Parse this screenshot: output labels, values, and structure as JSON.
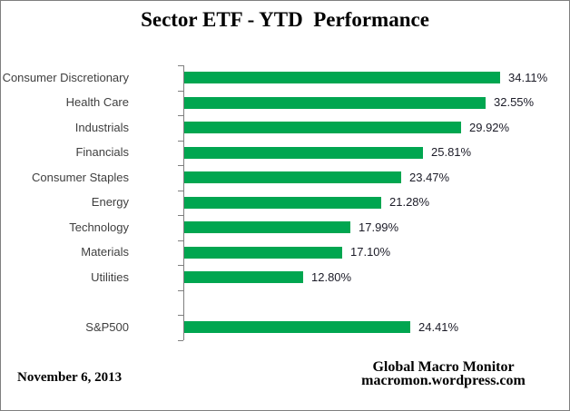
{
  "title": "Sector ETF - YTD  Performance",
  "footer": {
    "date": "November 6, 2013",
    "credit_line1": "Global Macro Monitor",
    "credit_line2": "macromon.wordpress.com"
  },
  "colors": {
    "bar": "#00A650",
    "axis": "#7f7f7f",
    "category_label": "#3f3f3f",
    "value_label": "#1c1c28"
  },
  "chart_data": {
    "type": "bar",
    "orientation": "horizontal",
    "title": "Sector ETF - YTD  Performance",
    "grid": false,
    "legend": false,
    "items": [
      {
        "label": "Consumer Discretionary",
        "value": 34.11,
        "display": "34.11%"
      },
      {
        "label": "Health Care",
        "value": 32.55,
        "display": "32.55%"
      },
      {
        "label": "Industrials",
        "value": 29.92,
        "display": "29.92%"
      },
      {
        "label": "Financials",
        "value": 25.81,
        "display": "25.81%"
      },
      {
        "label": "Consumer Staples",
        "value": 23.47,
        "display": "23.47%"
      },
      {
        "label": "Energy",
        "value": 21.28,
        "display": "21.28%"
      },
      {
        "label": "Technology",
        "value": 17.99,
        "display": "17.99%"
      },
      {
        "label": "Materials",
        "value": 17.1,
        "display": "17.10%"
      },
      {
        "label": "Utilities",
        "value": 12.8,
        "display": "12.80%"
      },
      {
        "label": "S&P500",
        "value": 24.41,
        "display": "24.41%"
      }
    ],
    "separator_after_index": 8
  }
}
